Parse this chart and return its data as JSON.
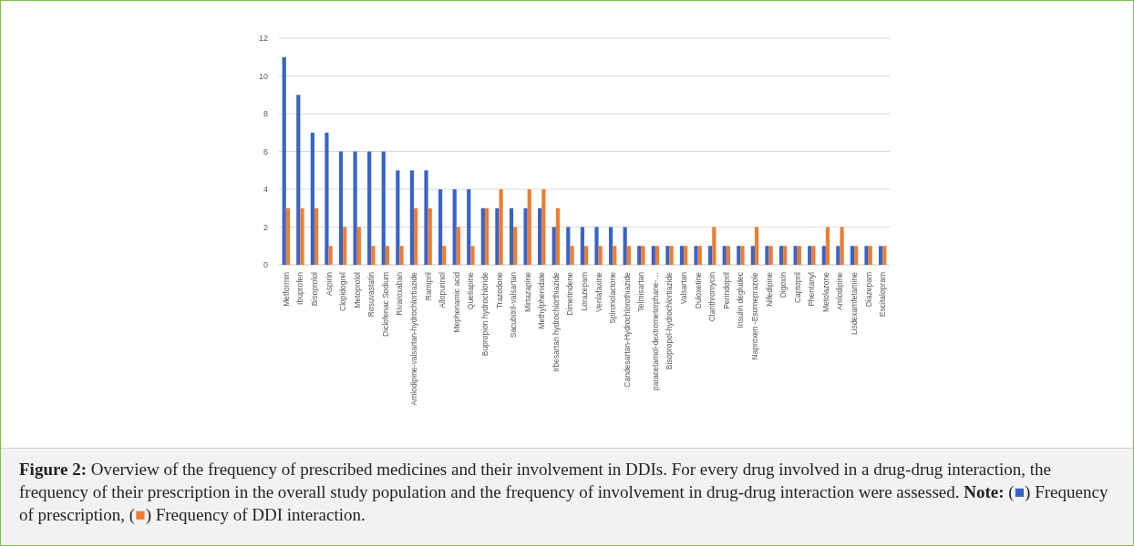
{
  "chart_data": {
    "type": "bar",
    "categories": [
      "Metformin",
      "Ibuprofen",
      "Bisoprolol",
      "Aspirin",
      "Clopidogrel",
      "Metoprolol",
      "Rosuvastatin",
      "Diclofenac Sodium",
      "Rivaroxaban",
      "Amlodipine-valsartan-hydrochlortiazide",
      "Ramipril",
      "Allopurinol",
      "Mephenamic acid",
      "Quetiapine",
      "Bupropion hydrochloride",
      "Trazodone",
      "Sacubitril-valsartan",
      "Mirtazapine",
      "Methylphenidate",
      "Irbesartan hydrochlorthiazide",
      "Dimetindene",
      "Lorazepam",
      "Venlafaxine",
      "Spironolactone",
      "Candesartan-Hydrochlorothiazide",
      "Telmisartan",
      "paracetamol-dextrometorphane-…",
      "Bisopropol-hydrochlortiazide",
      "Valsartan",
      "Duloxetine",
      "Clarithromycin",
      "Perindopril",
      "Insulin degludec",
      "Naproxen -Esomeprazole",
      "Nifedipine",
      "Digoxin",
      "Captopril",
      "Phentanyl",
      "Metolazone",
      "Amlodipine",
      "Lisdexamfetamine",
      "Diazepam",
      "Escitalopram"
    ],
    "series": [
      {
        "color": "#3a63c9",
        "values": [
          11,
          9,
          7,
          7,
          6,
          6,
          6,
          6,
          5,
          5,
          5,
          4,
          4,
          4,
          3,
          3,
          3,
          3,
          3,
          2,
          2,
          2,
          2,
          2,
          2,
          1,
          1,
          1,
          1,
          1,
          1,
          1,
          1,
          1,
          1,
          1,
          1,
          1,
          1,
          1,
          1,
          1,
          1
        ]
      },
      {
        "color": "#ed7d31",
        "values": [
          3,
          3,
          3,
          1,
          2,
          2,
          1,
          1,
          1,
          3,
          3,
          1,
          2,
          1,
          3,
          4,
          2,
          4,
          4,
          3,
          1,
          1,
          1,
          1,
          1,
          1,
          1,
          1,
          1,
          1,
          2,
          1,
          1,
          2,
          1,
          1,
          1,
          1,
          2,
          2,
          1,
          1,
          1
        ]
      }
    ],
    "ylim": [
      0,
      12
    ],
    "yticks": [
      0,
      2,
      4,
      6,
      8,
      10,
      12
    ],
    "grid": "y",
    "annotations": [
      "Figure 2: Overview of the frequency of prescribed medicines and their involvement in DDIs. For every drug involved in a drug-drug interaction, the frequency of their prescription in the overall study population and the frequency of involvement in drug-drug interaction were assessed.",
      "Note: (■) Frequency of prescription, (■) Frequency of DDI interaction."
    ]
  }
}
